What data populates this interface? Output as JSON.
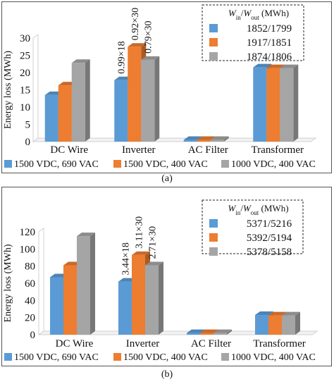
{
  "chart_data": [
    {
      "type": "bar",
      "panel_label": "(a)",
      "ylabel": "Energy loss (MWh)",
      "ylim": [
        0,
        30
      ],
      "yticks": [
        0,
        5,
        10,
        15,
        20,
        25,
        30
      ],
      "categories": [
        "DC Wire",
        "Inverter",
        "AC Filter",
        "Transformer"
      ],
      "series": [
        {
          "name": "1500 VDC, 690 VAC",
          "values": [
            13.5,
            17.8,
            0.5,
            21.5
          ]
        },
        {
          "name": "1500 VDC, 400 VAC",
          "values": [
            16.3,
            27.5,
            0.5,
            21.3
          ]
        },
        {
          "name": "1000 VDC, 400 VAC",
          "values": [
            22.8,
            23.7,
            0.5,
            21.3
          ]
        }
      ],
      "annotations": [
        "0.99×18",
        "0.92×30",
        "0.79×30"
      ],
      "inset": {
        "header": "W_in/W_out (MWh)",
        "rows": [
          "1852/1799",
          "1917/1851",
          "1874/1806"
        ]
      },
      "grid": false,
      "legend": "bottom",
      "colors": [
        "#5b9bd5",
        "#ed7d31",
        "#a5a5a5"
      ]
    },
    {
      "type": "bar",
      "panel_label": "(b)",
      "ylabel": "Energy loss (MWh)",
      "ylim": [
        0,
        120
      ],
      "yticks": [
        0,
        20,
        40,
        60,
        80,
        100,
        120
      ],
      "categories": [
        "DC Wire",
        "Inverter",
        "AC Filter",
        "Transformer"
      ],
      "series": [
        {
          "name": "1500 VDC, 690 VAC",
          "values": [
            67,
            62,
            2,
            23
          ]
        },
        {
          "name": "1500 VDC, 400 VAC",
          "values": [
            81,
            93,
            2,
            22.5
          ]
        },
        {
          "name": "1000 VDC, 400 VAC",
          "values": [
            115,
            81,
            2,
            22.5
          ]
        }
      ],
      "annotations": [
        "3.44×18",
        "3.11×30",
        "2.71×30"
      ],
      "inset": {
        "header": "W_in/W_out (MWh)",
        "rows": [
          "5371/5216",
          "5392/5194",
          "5378/5158"
        ]
      },
      "grid": false,
      "legend": "bottom",
      "colors": [
        "#5b9bd5",
        "#ed7d31",
        "#a5a5a5"
      ]
    }
  ]
}
